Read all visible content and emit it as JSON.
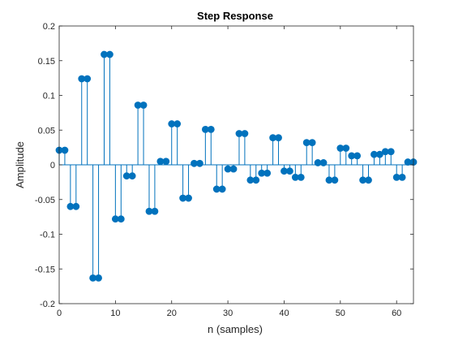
{
  "chart_data": {
    "type": "stem",
    "title": "Step Response",
    "xlabel": "n (samples)",
    "ylabel": "Amplitude",
    "xlim": [
      0,
      63
    ],
    "ylim": [
      -0.2,
      0.2
    ],
    "xticks": [
      0,
      10,
      20,
      30,
      40,
      50,
      60
    ],
    "xtick_labels": [
      "0",
      "10",
      "20",
      "30",
      "40",
      "50",
      "60"
    ],
    "yticks": [
      -0.2,
      -0.15,
      -0.1,
      -0.05,
      0,
      0.05,
      0.1,
      0.15,
      0.2
    ],
    "ytick_labels": [
      "-0.2",
      "-0.15",
      "-0.1",
      "-0.05",
      "0",
      "0.05",
      "0.1",
      "0.15",
      "0.2"
    ],
    "grid": false,
    "series": [
      {
        "color": "#0072BD",
        "x": [
          0,
          1,
          2,
          3,
          4,
          5,
          6,
          7,
          8,
          9,
          10,
          11,
          12,
          13,
          14,
          15,
          16,
          17,
          18,
          19,
          20,
          21,
          22,
          23,
          24,
          25,
          26,
          27,
          28,
          29,
          30,
          31,
          32,
          33,
          34,
          35,
          36,
          37,
          38,
          39,
          40,
          41,
          42,
          43,
          44,
          45,
          46,
          47,
          48,
          49,
          50,
          51,
          52,
          53,
          54,
          55,
          56,
          57,
          58,
          59,
          60,
          61,
          62,
          63
        ],
        "y": [
          0.021,
          0.021,
          -0.06,
          -0.06,
          0.124,
          0.124,
          -0.163,
          -0.163,
          0.159,
          0.159,
          -0.078,
          -0.078,
          -0.016,
          -0.016,
          0.086,
          0.086,
          -0.067,
          -0.067,
          0.005,
          0.005,
          0.059,
          0.059,
          -0.048,
          -0.048,
          0.002,
          0.002,
          0.051,
          0.051,
          -0.035,
          -0.035,
          -0.006,
          -0.006,
          0.045,
          0.045,
          -0.022,
          -0.022,
          -0.012,
          -0.012,
          0.039,
          0.039,
          -0.009,
          -0.009,
          -0.018,
          -0.018,
          0.032,
          0.032,
          0.003,
          0.003,
          -0.022,
          -0.022,
          0.024,
          0.024,
          0.013,
          0.013,
          -0.022,
          -0.022,
          0.015,
          0.015,
          0.019,
          0.019,
          -0.018,
          -0.018,
          0.004,
          0.004
        ]
      }
    ]
  }
}
